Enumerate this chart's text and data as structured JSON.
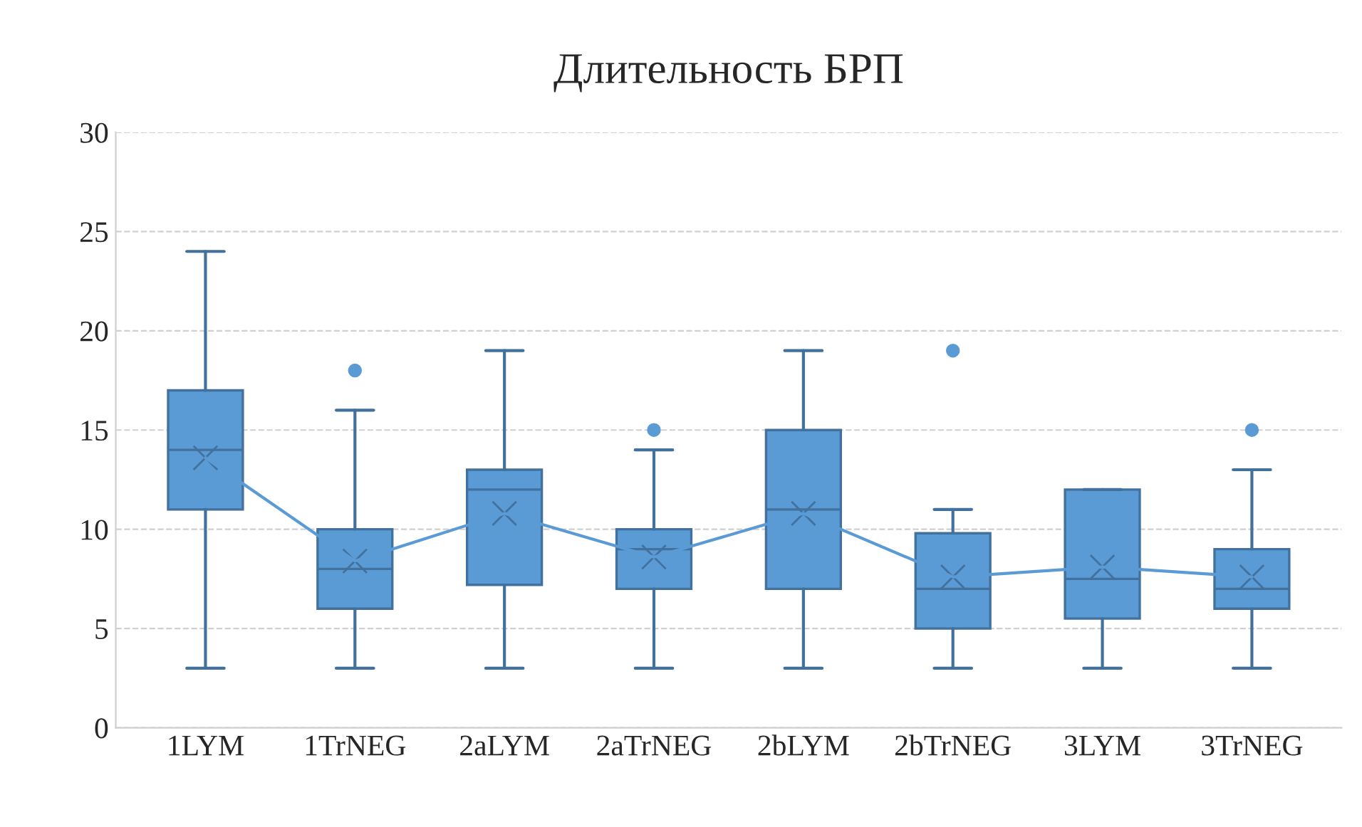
{
  "chart_data": {
    "type": "box",
    "title": "Длительность БРП",
    "categories": [
      "1LYM",
      "1TrNEG",
      "2aLYM",
      "2aTrNEG",
      "2bLYM",
      "2bTrNEG",
      "3LYM",
      "3TrNEG"
    ],
    "series": [
      {
        "color": "#5b9bd5",
        "boxes": [
          {
            "low": 3,
            "q1": 11,
            "median": 14,
            "q3": 17,
            "high": 24,
            "mean": 13.6
          },
          {
            "low": 3,
            "q1": 6,
            "median": 8,
            "q3": 10,
            "high": 16,
            "mean": 8.4,
            "outliers": [
              18
            ]
          },
          {
            "low": 3,
            "q1": 7.2,
            "median": 12,
            "q3": 13,
            "high": 19,
            "mean": 10.8
          },
          {
            "low": 3,
            "q1": 7,
            "median": 9,
            "q3": 10,
            "high": 14,
            "mean": 8.6,
            "outliers": [
              15
            ]
          },
          {
            "low": 3,
            "q1": 7,
            "median": 11,
            "q3": 15,
            "high": 19,
            "mean": 10.8
          },
          {
            "low": 3,
            "q1": 5,
            "median": 7,
            "q3": 9.8,
            "high": 11,
            "mean": 7.6,
            "outliers": [
              19
            ]
          },
          {
            "low": 3,
            "q1": 5.5,
            "median": 7.5,
            "q3": 12,
            "high": 12,
            "mean": 8.1
          },
          {
            "low": 3,
            "q1": 6,
            "median": 7,
            "q3": 9,
            "high": 13,
            "mean": 7.6,
            "outliers": [
              15
            ]
          }
        ]
      },
      {
        "type": "line",
        "color": "#5b9bd5",
        "values": [
          13.6,
          8.4,
          10.8,
          8.6,
          10.8,
          7.6,
          8.1,
          7.6
        ]
      }
    ],
    "ylim": [
      0,
      30
    ],
    "yticks": [
      0,
      5,
      10,
      15,
      20,
      25,
      30
    ],
    "grid": "y"
  }
}
